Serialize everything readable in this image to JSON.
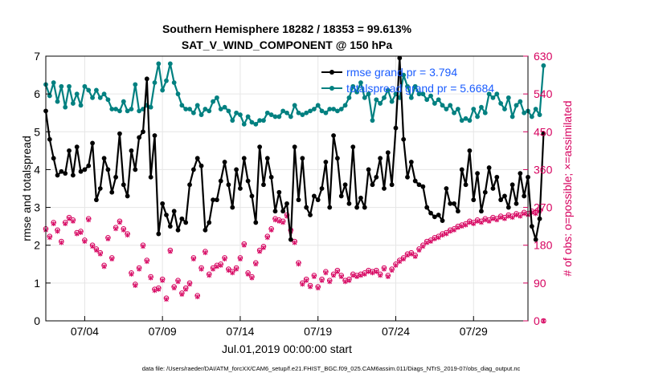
{
  "chart_data": {
    "type": "line",
    "title_line1": "Southern Hemisphere 18282 / 18353 = 99.613%",
    "title_line2": "SAT_V_WIND_COMPONENT @ 150 hPa",
    "ylabel": "rmse and totalspread",
    "y2label": "# of obs: o=possible; ×=assimilated",
    "xlabel": "Jul.01,2019 00:00:00 start",
    "footnote": "data file: /Users/raeder/DAI/ATM_forcXX/CAM6_setup/f.e21.FHIST_BGC.f09_025.CAM6assim.011/Diags_NTrS_2019-07/obs_diag_output.nc",
    "xlim": [
      1.5,
      32.5
    ],
    "ylim": [
      0,
      7
    ],
    "y2lim": [
      0,
      630
    ],
    "xticks": [
      4,
      9,
      14,
      19,
      24,
      29
    ],
    "xtick_labels": [
      "07/04",
      "07/09",
      "07/14",
      "07/19",
      "07/24",
      "07/29"
    ],
    "yticks": [
      0,
      1,
      2,
      3,
      4,
      5,
      6,
      7
    ],
    "y2ticks": [
      0,
      90,
      180,
      270,
      360,
      450,
      540,
      630
    ],
    "legend": {
      "placement": "top-right",
      "entries": [
        "rmse grand pr = 3.794",
        "totalspread grand pr = 5.6684"
      ]
    },
    "colors": {
      "rmse": "#000000",
      "spread": "#008080",
      "obs": "#d6005e",
      "legend_text": "#1a5cff",
      "grid": "#e6e6e6"
    },
    "x_start": 1.5,
    "x_step": 0.25,
    "series": [
      {
        "name": "rmse",
        "values": [
          5.55,
          4.8,
          4.3,
          3.85,
          3.95,
          3.9,
          4.5,
          3.85,
          4.6,
          3.95,
          4.0,
          4.1,
          4.7,
          3.2,
          3.5,
          4.3,
          4.0,
          3.4,
          3.8,
          4.95,
          3.6,
          3.3,
          4.5,
          4.0,
          4.85,
          5.0,
          6.4,
          3.8,
          4.9,
          2.3,
          3.1,
          2.8,
          2.5,
          2.9,
          2.4,
          2.7,
          2.6,
          3.6,
          4.0,
          4.3,
          4.1,
          2.4,
          2.6,
          3.2,
          3.2,
          3.7,
          4.2,
          3.6,
          3.0,
          4.0,
          3.5,
          4.3,
          3.7,
          3.3,
          2.6,
          4.6,
          3.6,
          4.3,
          3.8,
          2.9,
          3.4,
          2.9,
          3.1,
          2.15,
          4.6,
          3.2,
          4.3,
          3.0,
          2.8,
          3.3,
          3.2,
          3.5,
          4.2,
          3.0,
          4.9,
          4.3,
          3.3,
          3.6,
          3.1,
          4.6,
          3.0,
          3.25,
          3.0,
          4.0,
          3.6,
          3.8,
          4.3,
          3.5,
          4.45,
          3.6,
          5.1,
          6.95,
          4.8,
          3.8,
          4.2,
          3.7,
          3.6,
          3.55,
          3.0,
          2.85,
          2.75,
          2.8,
          2.65,
          3.5,
          3.1,
          3.1,
          2.9,
          4.0,
          3.6,
          4.5,
          3.2,
          3.9,
          2.9,
          3.4,
          4.05,
          3.5,
          3.8,
          3.2,
          3.3,
          3.0,
          3.6,
          3.1,
          3.9,
          3.3,
          3.8,
          2.5,
          2.15,
          2.7,
          4.95
        ]
      },
      {
        "name": "totalspread",
        "values": [
          6.25,
          5.95,
          6.3,
          5.8,
          6.2,
          5.65,
          6.2,
          5.75,
          6.0,
          5.7,
          6.2,
          6.1,
          5.9,
          6.1,
          5.9,
          6.0,
          5.85,
          5.6,
          5.6,
          5.55,
          5.8,
          5.55,
          5.6,
          6.25,
          5.55,
          5.6,
          5.7,
          5.65,
          6.3,
          6.8,
          6.1,
          6.35,
          6.8,
          6.3,
          6.0,
          5.7,
          5.6,
          5.6,
          5.5,
          5.7,
          5.45,
          5.6,
          5.55,
          5.8,
          5.9,
          5.6,
          5.65,
          5.55,
          5.3,
          5.5,
          5.45,
          5.2,
          5.4,
          5.25,
          5.2,
          5.3,
          5.3,
          5.5,
          5.45,
          5.4,
          5.4,
          5.55,
          5.5,
          5.4,
          5.7,
          5.5,
          5.45,
          5.5,
          5.55,
          5.6,
          5.7,
          5.55,
          5.5,
          5.6,
          5.6,
          5.55,
          5.6,
          5.7,
          5.9,
          6.2,
          6.05,
          6.3,
          5.9,
          6.0,
          5.3,
          5.85,
          5.75,
          5.9,
          6.1,
          5.8,
          6.0,
          5.9,
          6.5,
          6.2,
          5.9,
          6.2,
          6.0,
          6.0,
          5.85,
          5.95,
          5.75,
          5.85,
          5.7,
          5.6,
          5.7,
          5.5,
          5.6,
          5.3,
          5.35,
          5.3,
          5.6,
          5.4,
          5.65,
          5.5,
          6.0,
          5.9,
          6.0,
          5.75,
          5.6,
          5.9,
          5.4,
          5.7,
          5.8,
          5.5,
          5.55,
          5.4,
          5.6,
          5.45,
          6.75
        ]
      },
      {
        "name": "obs_possible",
        "values": [
          219,
          201,
          234,
          216,
          189,
          234,
          246,
          240,
          210,
          213,
          192,
          243,
          180,
          171,
          162,
          132,
          198,
          150,
          222,
          237,
          219,
          207,
          114,
          87,
          126,
          180,
          144,
          105,
          75,
          78,
          99,
          54,
          168,
          81,
          96,
          66,
          78,
          90,
          150,
          60,
          126,
          165,
          111,
          126,
          132,
          135,
          150,
          123,
          117,
          126,
          150,
          183,
          114,
          105,
          138,
          168,
          177,
          201,
          219,
          243,
          240,
          237,
          252,
          216,
          189,
          138,
          90,
          99,
          84,
          108,
          81,
          99,
          117,
          96,
          111,
          120,
          108,
          96,
          99,
          111,
          108,
          111,
          114,
          120,
          117,
          120,
          111,
          126,
          108,
          123,
          135,
          144,
          150,
          159,
          162,
          156,
          171,
          180,
          189,
          192,
          198,
          201,
          207,
          210,
          216,
          219,
          225,
          228,
          231,
          237,
          234,
          240,
          237,
          243,
          240,
          246,
          243,
          249,
          246,
          252,
          249,
          255,
          252,
          258,
          255,
          261,
          258,
          264,
          0
        ]
      },
      {
        "name": "obs_assimilated",
        "values": [
          216,
          198,
          231,
          213,
          186,
          231,
          243,
          237,
          207,
          210,
          189,
          240,
          177,
          168,
          159,
          129,
          195,
          147,
          219,
          234,
          216,
          204,
          111,
          84,
          123,
          177,
          141,
          102,
          72,
          75,
          96,
          51,
          165,
          78,
          93,
          63,
          75,
          87,
          147,
          57,
          123,
          162,
          108,
          123,
          129,
          132,
          147,
          120,
          114,
          123,
          147,
          180,
          111,
          102,
          135,
          165,
          174,
          198,
          216,
          240,
          237,
          234,
          249,
          213,
          186,
          135,
          87,
          96,
          81,
          105,
          78,
          96,
          114,
          93,
          108,
          117,
          105,
          93,
          96,
          108,
          105,
          108,
          111,
          117,
          114,
          117,
          108,
          123,
          105,
          120,
          132,
          141,
          147,
          156,
          159,
          153,
          168,
          177,
          186,
          189,
          195,
          198,
          204,
          207,
          213,
          216,
          222,
          225,
          228,
          234,
          231,
          237,
          234,
          240,
          237,
          243,
          240,
          246,
          243,
          249,
          246,
          252,
          249,
          255,
          252,
          258,
          255,
          261,
          0
        ]
      }
    ]
  }
}
